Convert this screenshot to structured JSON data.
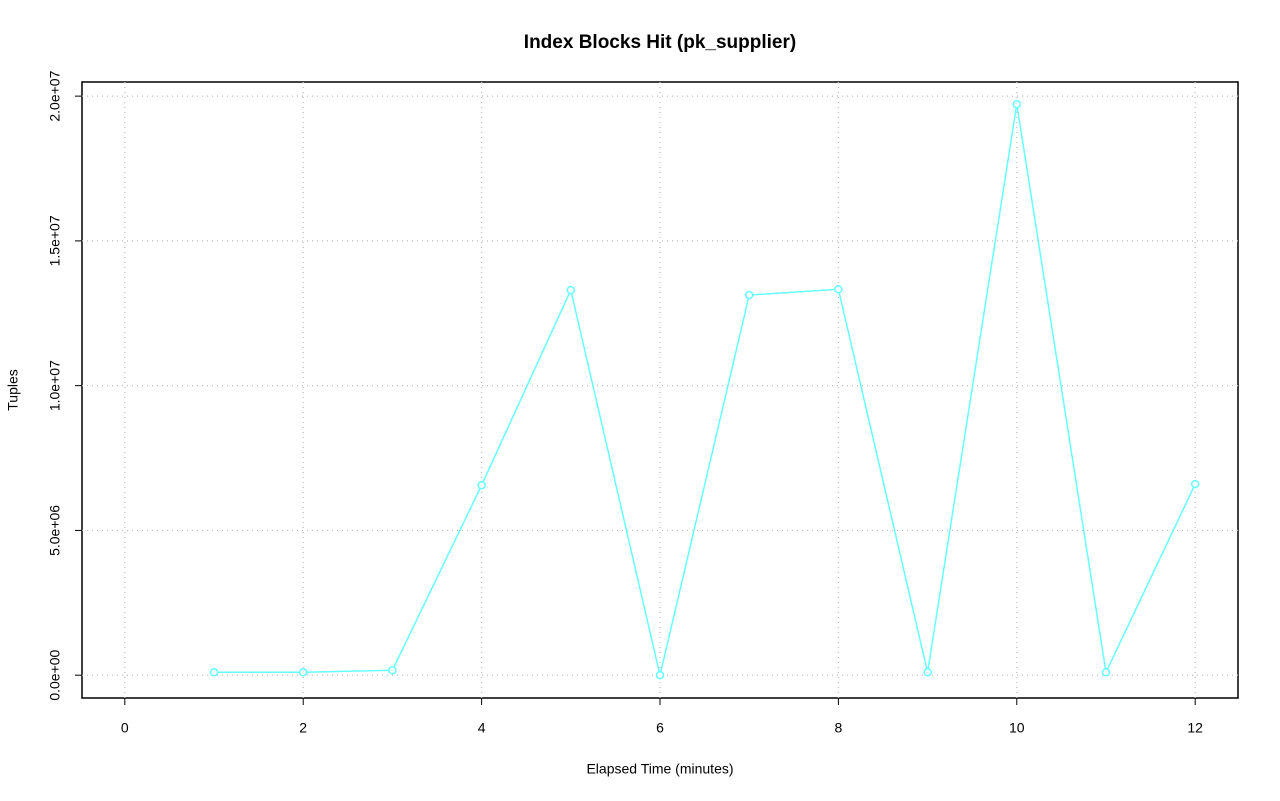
{
  "chart_data": {
    "type": "line",
    "title": "Index Blocks Hit (pk_supplier)",
    "xlabel": "Elapsed Time (minutes)",
    "ylabel": "Tuples",
    "x": [
      1,
      2,
      3,
      4,
      5,
      6,
      7,
      8,
      9,
      10,
      11,
      12
    ],
    "series": [
      {
        "color": "#66ffff",
        "values": [
          100000,
          100000,
          170000,
          6560000,
          13300000,
          0,
          13130000,
          13330000,
          100000,
          19720000,
          100000,
          6600000
        ]
      }
    ],
    "xlim": [
      -0.48,
      12.48
    ],
    "ylim": [
      -788000,
      20488000
    ],
    "xticks": [
      0,
      2,
      4,
      6,
      8,
      10,
      12
    ],
    "yticks": [
      {
        "value": 0,
        "label": "0.0e+00"
      },
      {
        "value": 5000000,
        "label": "5.0e+06"
      },
      {
        "value": 10000000,
        "label": "1.0e+07"
      },
      {
        "value": 15000000,
        "label": "1.5e+07"
      },
      {
        "value": 20000000,
        "label": "2.0e+07"
      }
    ],
    "grid": true
  }
}
